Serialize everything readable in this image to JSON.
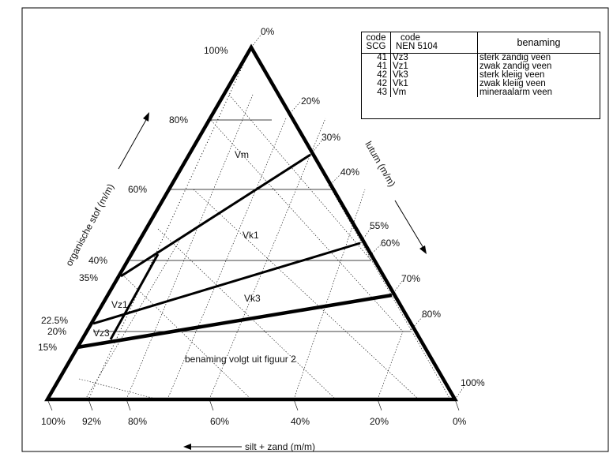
{
  "diagram": {
    "left_axis_label": "organische stof (m/m)",
    "right_axis_label": "lutum (m/m)",
    "bottom_axis_label": "silt + zand (m/m)",
    "left_ticks": [
      "100%",
      "80%",
      "60%",
      "40%",
      "35%",
      "22.5%",
      "20%",
      "15%"
    ],
    "right_ticks": [
      "0%",
      "20%",
      "30%",
      "40%",
      "55%",
      "60%",
      "70%",
      "80%",
      "100%"
    ],
    "bottom_ticks": [
      "100%",
      "92%",
      "80%",
      "60%",
      "40%",
      "20%",
      "0%"
    ],
    "regions": [
      "Vm",
      "Vk1",
      "Vk3",
      "Vz1",
      "Vz3",
      "benaming volgt uit figuur 2"
    ]
  },
  "legend": {
    "headers": {
      "code_scg": [
        "code",
        "SCG"
      ],
      "code_nen": [
        "code",
        "NEN 5104"
      ],
      "benaming": "benaming"
    },
    "rows": [
      {
        "scg": "41",
        "nen": "Vz3",
        "name": "sterk zandig veen"
      },
      {
        "scg": "41",
        "nen": "Vz1",
        "name": "zwak zandig veen"
      },
      {
        "scg": "42",
        "nen": "Vk3",
        "name": "sterk kleiig veen"
      },
      {
        "scg": "42",
        "nen": "Vk1",
        "name": "zwak kleiig veen"
      },
      {
        "scg": "43",
        "nen": "Vm",
        "name": "mineraalarm veen"
      }
    ]
  }
}
